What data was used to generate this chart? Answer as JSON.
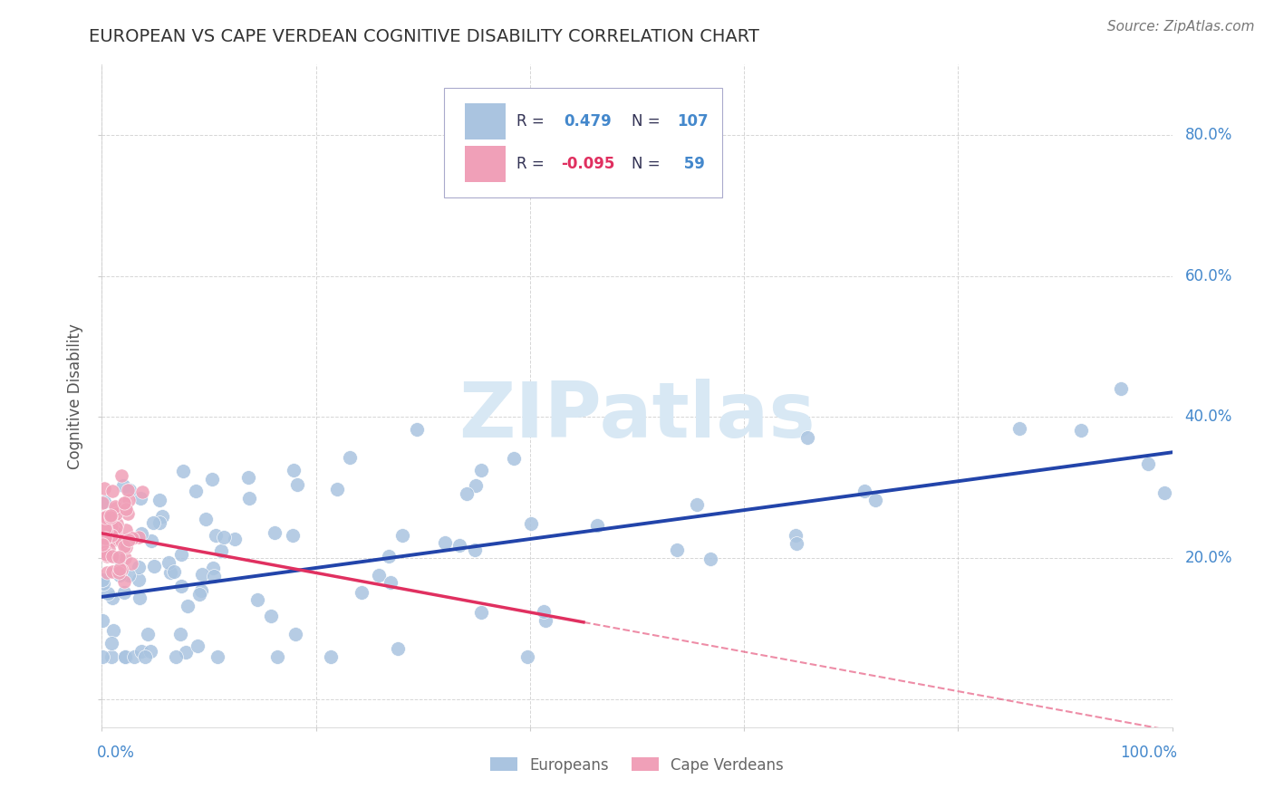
{
  "title": "EUROPEAN VS CAPE VERDEAN COGNITIVE DISABILITY CORRELATION CHART",
  "source": "Source: ZipAtlas.com",
  "ylabel": "Cognitive Disability",
  "xlim": [
    0.0,
    1.0
  ],
  "ylim": [
    -0.04,
    0.9
  ],
  "european_R": 0.479,
  "european_N": 107,
  "capeverdean_R": -0.095,
  "capeverdean_N": 59,
  "european_color": "#aac4e0",
  "capeverdean_color": "#f0a0b8",
  "european_line_color": "#2244aa",
  "capeverdean_line_color": "#e03060",
  "background_color": "#ffffff",
  "grid_color": "#cccccc",
  "title_color": "#333333",
  "axis_label_color": "#555555",
  "tick_label_color": "#4488cc",
  "watermark_color": "#d8e8f4",
  "legend_text_color": "#333355",
  "legend_number_color": "#4488cc",
  "legend_neg_color": "#e03060",
  "bottom_legend_color": "#666666"
}
